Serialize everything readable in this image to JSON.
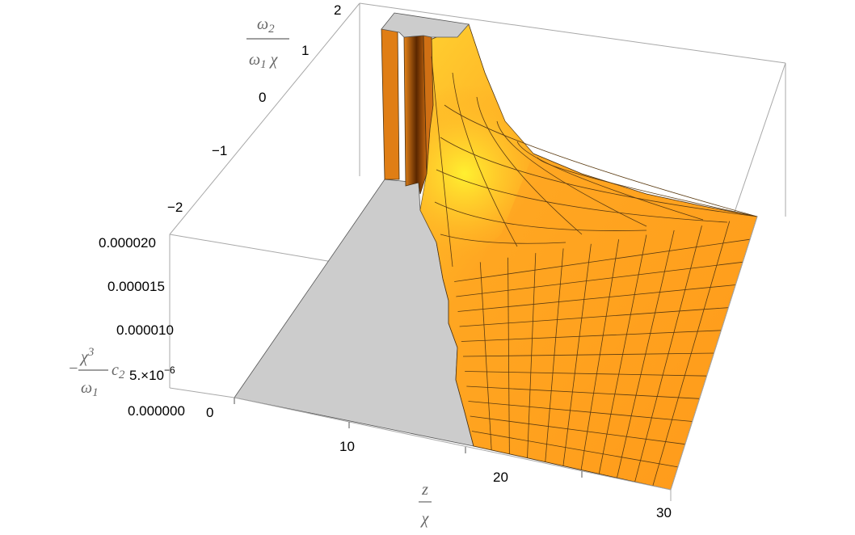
{
  "chart_data": {
    "type": "surface3d",
    "axes": {
      "x": {
        "label_num": "z",
        "label_den": "χ",
        "ticks": [
          "0",
          "10",
          "20",
          "30"
        ],
        "range": [
          0,
          30
        ]
      },
      "y": {
        "label_num": "ω",
        "label_num_sub": "2",
        "label_den": "ω",
        "label_den_sub": "1",
        "label_den_tail": " χ",
        "ticks": [
          "−2",
          "−1",
          "0",
          "1",
          "2"
        ],
        "range": [
          -2,
          2
        ]
      },
      "z": {
        "label_prefix": "−",
        "label_num": "χ",
        "label_num_sup": "3",
        "label_den": "ω",
        "label_den_sub": "1",
        "label_tail": "c",
        "label_tail_sub": "2",
        "ticks": [
          "0.000000",
          "5.×10",
          "0.000010",
          "0.000015",
          "0.000020"
        ],
        "tick_exp": "−6",
        "range": [
          0,
          2.2e-05
        ]
      }
    },
    "surface_color": "#FF9E1F",
    "highlight_color": "#FFE020",
    "shadow_color": "#7A3500",
    "floor_color": "#CCCCCC",
    "mesh_color": "#5A3A10"
  }
}
